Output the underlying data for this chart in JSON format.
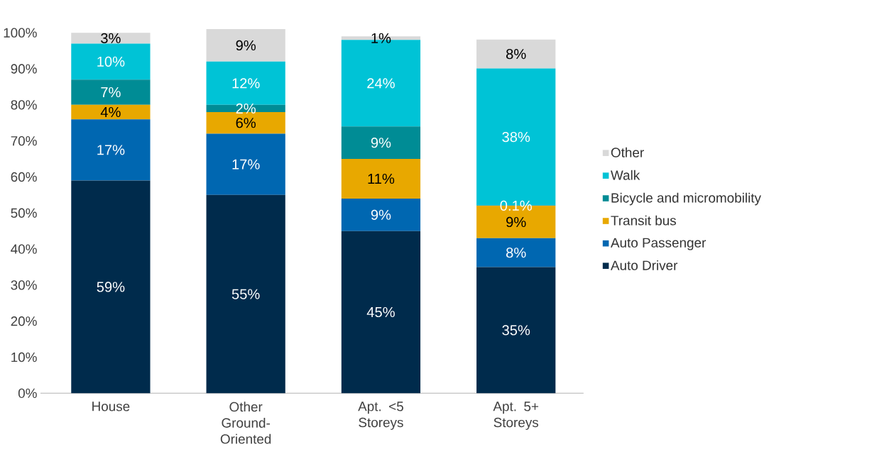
{
  "chart_data": {
    "type": "bar",
    "stacked": true,
    "legend": "right",
    "categories": [
      "House",
      "Other Ground-Oriented",
      "Apt. <5 Storeys",
      "Apt. 5+ Storeys"
    ],
    "ylim": [
      0,
      102
    ],
    "yticks": [
      {
        "value": 0,
        "label": "0%"
      },
      {
        "value": 10,
        "label": "10%"
      },
      {
        "value": 20,
        "label": "20%"
      },
      {
        "value": 30,
        "label": "30%"
      },
      {
        "value": 40,
        "label": "40%"
      },
      {
        "value": 50,
        "label": "50%"
      },
      {
        "value": 60,
        "label": "60%"
      },
      {
        "value": 70,
        "label": "70%"
      },
      {
        "value": 80,
        "label": "80%"
      },
      {
        "value": 90,
        "label": "90%"
      },
      {
        "value": 100,
        "label": "100%"
      }
    ],
    "series": [
      {
        "name": "Auto Driver",
        "color": "#002b4c",
        "values": [
          59,
          55,
          45,
          35
        ],
        "value_labels": [
          "59%",
          "55%",
          "45%",
          "35%"
        ]
      },
      {
        "name": "Auto Passenger",
        "color": "#0067b1",
        "values": [
          17,
          17,
          9,
          8
        ],
        "value_labels": [
          "17%",
          "17%",
          "9%",
          "8%"
        ]
      },
      {
        "name": "Transit bus",
        "color": "#e8a800",
        "values": [
          4,
          6,
          11,
          9
        ],
        "value_labels": [
          "4%",
          "6%",
          "11%",
          "9%"
        ]
      },
      {
        "name": "Bicycle and micromobility",
        "color": "#008c95",
        "values": [
          7,
          2,
          9,
          0.1
        ],
        "value_labels": [
          "7%",
          "2%",
          "9%",
          "0.1%"
        ]
      },
      {
        "name": "Walk",
        "color": "#00c3d6",
        "values": [
          10,
          12,
          24,
          38
        ],
        "value_labels": [
          "10%",
          "12%",
          "24%",
          "38%"
        ]
      },
      {
        "name": "Other",
        "color": "#d9d9d9",
        "values": [
          3,
          9,
          1,
          8
        ],
        "value_labels": [
          "3%",
          "9%",
          "1%",
          "8%"
        ]
      }
    ]
  }
}
